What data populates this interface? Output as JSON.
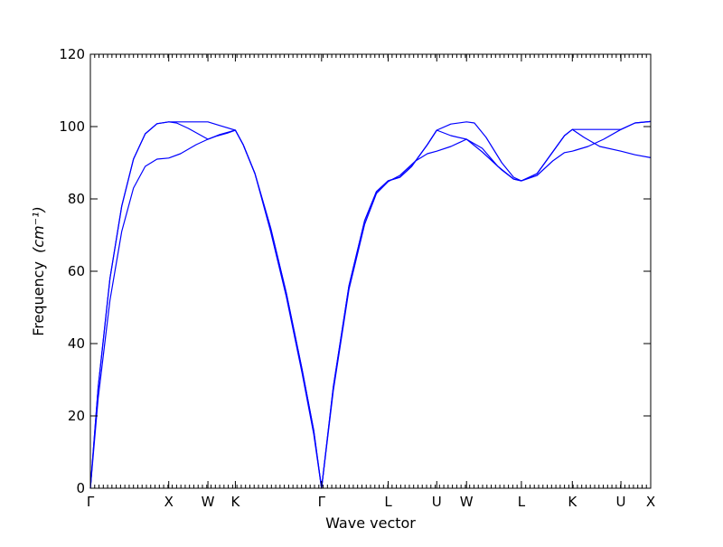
{
  "chart_data": {
    "type": "line",
    "xlabel": "Wave vector",
    "ylabel": "Frequency",
    "ylabel_unit": "(cm⁻¹)",
    "ylim": [
      0,
      120
    ],
    "yticks": [
      0,
      20,
      40,
      60,
      80,
      100,
      120
    ],
    "xlim": [
      0,
      7.15
    ],
    "high_symmetry_points": [
      {
        "label": "Γ",
        "x": 0.0
      },
      {
        "label": "X",
        "x": 1.0
      },
      {
        "label": "W",
        "x": 1.5
      },
      {
        "label": "K",
        "x": 1.85
      },
      {
        "label": "Γ",
        "x": 2.95
      },
      {
        "label": "L",
        "x": 3.8
      },
      {
        "label": "U",
        "x": 4.42
      },
      {
        "label": "W",
        "x": 4.8
      },
      {
        "label": "L",
        "x": 5.5
      },
      {
        "label": "K",
        "x": 6.15
      },
      {
        "label": "U",
        "x": 6.77
      },
      {
        "label": "X",
        "x": 7.15
      }
    ],
    "grid": false,
    "line_color": "#0000ff",
    "series": [
      {
        "points": [
          [
            0,
            0
          ],
          [
            0.1,
            28
          ],
          [
            0.25,
            58
          ],
          [
            0.4,
            78
          ],
          [
            0.55,
            91
          ],
          [
            0.7,
            98
          ],
          [
            0.85,
            100.8
          ],
          [
            1.0,
            101.3
          ],
          [
            1.2,
            101.3
          ],
          [
            1.5,
            101.3
          ],
          [
            1.65,
            100.3
          ],
          [
            1.85,
            99
          ],
          [
            1.95,
            95
          ],
          [
            2.1,
            87
          ],
          [
            2.3,
            72
          ],
          [
            2.5,
            54
          ],
          [
            2.7,
            33
          ],
          [
            2.85,
            16
          ],
          [
            2.95,
            0
          ],
          [
            3.1,
            28
          ],
          [
            3.3,
            56
          ],
          [
            3.5,
            74
          ],
          [
            3.65,
            82
          ],
          [
            3.8,
            85
          ],
          [
            3.95,
            86
          ],
          [
            4.1,
            89
          ],
          [
            4.3,
            95
          ],
          [
            4.42,
            99
          ],
          [
            4.6,
            100.7
          ],
          [
            4.8,
            101.3
          ],
          [
            4.9,
            101
          ],
          [
            5.05,
            97
          ],
          [
            5.25,
            90
          ],
          [
            5.4,
            86
          ],
          [
            5.5,
            85
          ],
          [
            5.7,
            87
          ],
          [
            5.9,
            93
          ],
          [
            6.05,
            97.5
          ],
          [
            6.15,
            99.2
          ],
          [
            6.4,
            99.2
          ],
          [
            6.77,
            99.2
          ],
          [
            6.95,
            101
          ],
          [
            7.15,
            101.4
          ]
        ]
      },
      {
        "points": [
          [
            0,
            0
          ],
          [
            0.1,
            28
          ],
          [
            0.25,
            58
          ],
          [
            0.4,
            78
          ],
          [
            0.55,
            91
          ],
          [
            0.7,
            98
          ],
          [
            0.85,
            100.8
          ],
          [
            1.0,
            101.3
          ],
          [
            1.1,
            101
          ],
          [
            1.25,
            99.5
          ],
          [
            1.5,
            96.5
          ],
          [
            1.65,
            97.8
          ],
          [
            1.85,
            99
          ],
          [
            1.95,
            95
          ],
          [
            2.1,
            87
          ],
          [
            2.3,
            72
          ],
          [
            2.5,
            54
          ],
          [
            2.7,
            33
          ],
          [
            2.85,
            16
          ],
          [
            2.95,
            0
          ],
          [
            3.1,
            28
          ],
          [
            3.3,
            56
          ],
          [
            3.5,
            74
          ],
          [
            3.65,
            82
          ],
          [
            3.8,
            85
          ],
          [
            3.95,
            86
          ],
          [
            4.1,
            89
          ],
          [
            4.3,
            95
          ],
          [
            4.42,
            99
          ],
          [
            4.6,
            97.5
          ],
          [
            4.8,
            96.5
          ],
          [
            5.0,
            93
          ],
          [
            5.25,
            88
          ],
          [
            5.4,
            85.5
          ],
          [
            5.5,
            85
          ],
          [
            5.7,
            87
          ],
          [
            5.9,
            93
          ],
          [
            6.05,
            97.5
          ],
          [
            6.15,
            99.2
          ],
          [
            6.3,
            97
          ],
          [
            6.5,
            94.5
          ],
          [
            6.77,
            93.2
          ],
          [
            6.95,
            92.2
          ],
          [
            7.15,
            91.4
          ]
        ]
      },
      {
        "points": [
          [
            0,
            0
          ],
          [
            0.1,
            25
          ],
          [
            0.25,
            52
          ],
          [
            0.4,
            71
          ],
          [
            0.55,
            83
          ],
          [
            0.7,
            89
          ],
          [
            0.85,
            91
          ],
          [
            1.0,
            91.3
          ],
          [
            1.15,
            92.5
          ],
          [
            1.35,
            95
          ],
          [
            1.5,
            96.5
          ],
          [
            1.6,
            97.3
          ],
          [
            1.75,
            98.2
          ],
          [
            1.85,
            99
          ],
          [
            1.95,
            95
          ],
          [
            2.1,
            87
          ],
          [
            2.3,
            71
          ],
          [
            2.5,
            53
          ],
          [
            2.7,
            32
          ],
          [
            2.85,
            15
          ],
          [
            2.95,
            0
          ],
          [
            3.1,
            27
          ],
          [
            3.3,
            55
          ],
          [
            3.5,
            73
          ],
          [
            3.65,
            81.5
          ],
          [
            3.8,
            84.8
          ],
          [
            3.95,
            86.5
          ],
          [
            4.15,
            90.5
          ],
          [
            4.3,
            92.5
          ],
          [
            4.42,
            93.2
          ],
          [
            4.6,
            94.5
          ],
          [
            4.8,
            96.5
          ],
          [
            5.0,
            94
          ],
          [
            5.2,
            89
          ],
          [
            5.4,
            85.5
          ],
          [
            5.5,
            85
          ],
          [
            5.7,
            86.5
          ],
          [
            5.9,
            90.5
          ],
          [
            6.05,
            92.8
          ],
          [
            6.15,
            93.2
          ],
          [
            6.35,
            94.5
          ],
          [
            6.55,
            96.5
          ],
          [
            6.77,
            99.2
          ],
          [
            6.95,
            101
          ],
          [
            7.15,
            101.4
          ]
        ]
      }
    ]
  }
}
